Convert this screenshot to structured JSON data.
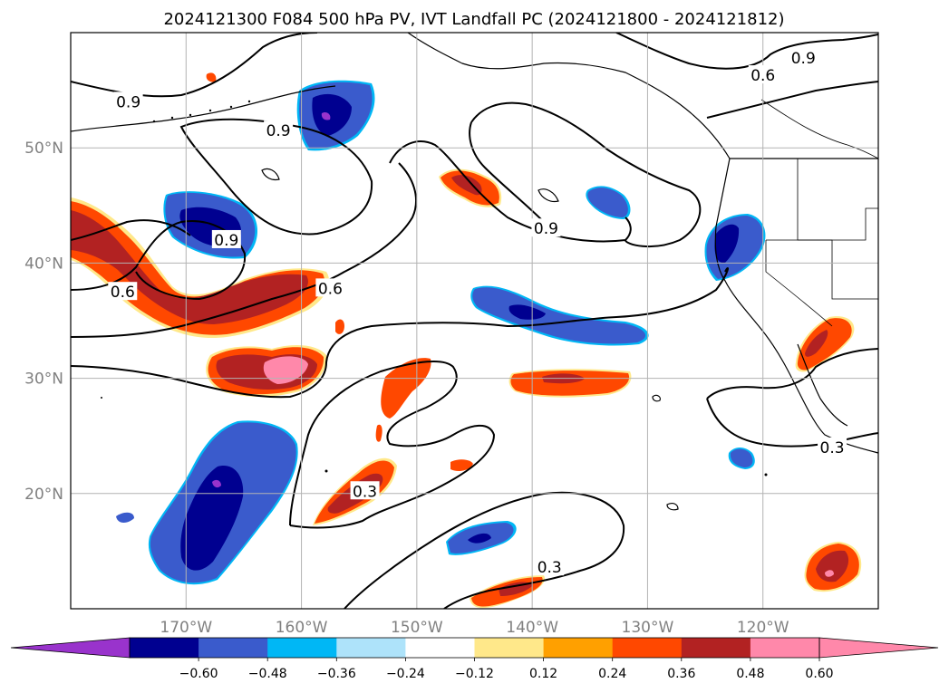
{
  "title": "2024121300 F084 500 hPa PV, IVT Landfall PC (2024121800 - 2024121812)",
  "map_extent": {
    "lon_min": -180,
    "lon_max": -110,
    "lat_min": 10,
    "lat_max": 60
  },
  "lon_labels": [
    {
      "lon": -170,
      "text": "170°W"
    },
    {
      "lon": -160,
      "text": "160°W"
    },
    {
      "lon": -150,
      "text": "150°W"
    },
    {
      "lon": -140,
      "text": "140°W"
    },
    {
      "lon": -130,
      "text": "130°W"
    },
    {
      "lon": -120,
      "text": "120°W"
    }
  ],
  "lat_labels": [
    {
      "lat": 20,
      "text": "20°N"
    },
    {
      "lat": 30,
      "text": "30°N"
    },
    {
      "lat": 40,
      "text": "40°N"
    },
    {
      "lat": 50,
      "text": "50°N"
    }
  ],
  "grid": true,
  "colorbar": {
    "levels": [
      "−0.60",
      "−0.48",
      "−0.36",
      "−0.24",
      "−0.12",
      "0.12",
      "0.24",
      "0.36",
      "0.48",
      "0.60"
    ],
    "colors": {
      "extend_min": "#9933cc",
      "bins": [
        "#000090",
        "#3a5bcc",
        "#00b7f5",
        "#aee3fa",
        "#ffffff",
        "#ffe88a",
        "#ffa000",
        "#ff4800",
        "#b22222",
        "#ff88aa"
      ],
      "extend_max": "#ff88aa"
    }
  },
  "contour_labels": [
    {
      "text": "0.9",
      "lon": -175,
      "lat": 54
    },
    {
      "text": "0.9",
      "lon": -162,
      "lat": 51.5
    },
    {
      "text": "0.9",
      "lon": -166.5,
      "lat": 42
    },
    {
      "text": "0.9",
      "lon": -138.8,
      "lat": 43
    },
    {
      "text": "0.9",
      "lon": -116.5,
      "lat": 57.8
    },
    {
      "text": "0.6",
      "lon": -120,
      "lat": 56.3
    },
    {
      "text": "0.6",
      "lon": -157.5,
      "lat": 37.8
    },
    {
      "text": "0.6",
      "lon": -175.5,
      "lat": 37.5
    },
    {
      "text": "0.3",
      "lon": -154.5,
      "lat": 20.2
    },
    {
      "text": "0.3",
      "lon": -138.5,
      "lat": 13.6
    },
    {
      "text": "0.3",
      "lon": -114,
      "lat": 24
    }
  ]
}
